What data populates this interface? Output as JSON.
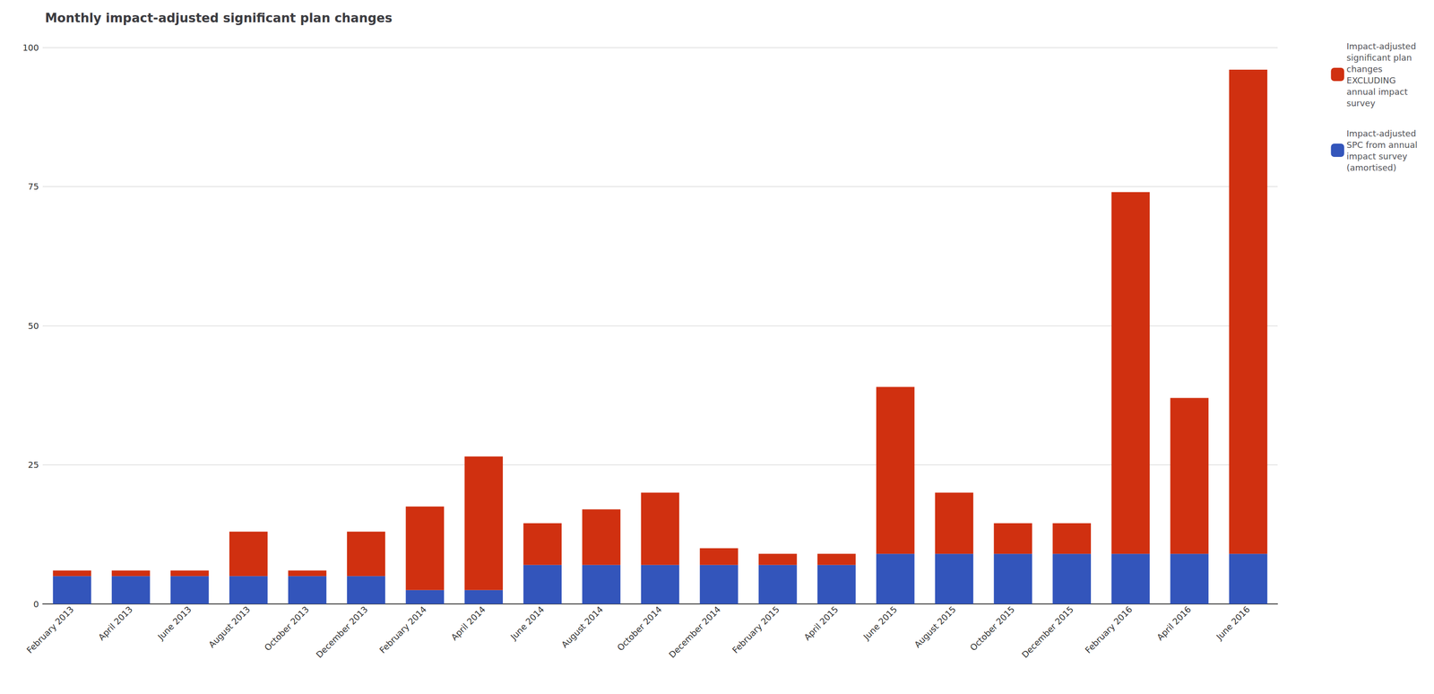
{
  "chart_data": {
    "type": "bar",
    "stacked": true,
    "title": "Monthly impact-adjusted significant plan changes",
    "categories": [
      "February 2013",
      "April 2013",
      "June 2013",
      "August 2013",
      "October 2013",
      "December 2013",
      "February 2014",
      "April 2014",
      "June 2014",
      "August 2014",
      "October 2014",
      "December 2014",
      "February 2015",
      "April 2015",
      "June 2015",
      "August 2015",
      "October 2015",
      "December 2015",
      "February 2016",
      "April 2016",
      "June 2016"
    ],
    "series": [
      {
        "name": "Impact-adjusted\nSPC from annual\nimpact survey\n(amortised)",
        "color": "#3355BB",
        "values": [
          5.0,
          5.0,
          5.0,
          5.0,
          5.0,
          5.0,
          2.5,
          2.5,
          7.0,
          7.0,
          7.0,
          7.0,
          7.0,
          7.0,
          9.0,
          9.0,
          9.0,
          9.0,
          9.0,
          9.0,
          9.0
        ]
      },
      {
        "name": "Impact-adjusted\nsignificant plan\nchanges\nEXCLUDING\nannual impact\nsurvey",
        "color": "#D03010",
        "values": [
          1.0,
          1.0,
          1.0,
          8.0,
          1.0,
          8.0,
          15.0,
          24.0,
          7.5,
          10.0,
          13.0,
          3.0,
          2.0,
          2.0,
          30.0,
          11.0,
          5.5,
          5.5,
          65.0,
          28.0,
          87.0
        ]
      }
    ],
    "ylim": [
      0,
      100
    ],
    "yticks": [
      0,
      25,
      50,
      75,
      100
    ],
    "grid": true,
    "legend": "upper right"
  }
}
